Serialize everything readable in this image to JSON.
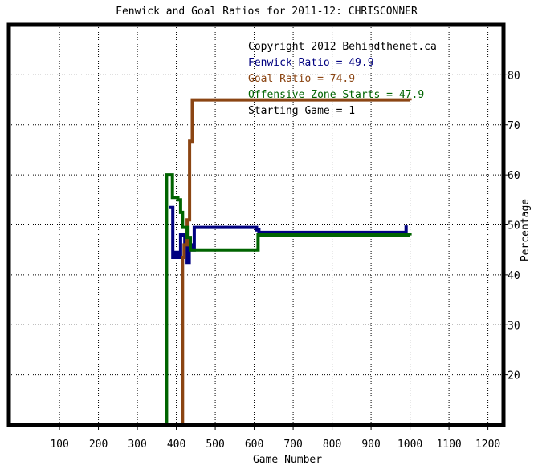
{
  "chart_data": {
    "type": "line",
    "title": "Fenwick and Goal Ratios for 2011-12: CHRISCONNER",
    "xlabel": "Game Number",
    "ylabel": "Percentage",
    "xlim": [
      -30,
      1240
    ],
    "ylim": [
      10,
      90
    ],
    "x_ticks": [
      100,
      200,
      300,
      400,
      500,
      600,
      700,
      800,
      900,
      1000,
      1100,
      1200
    ],
    "y_ticks": [
      20,
      30,
      40,
      50,
      60,
      70,
      80
    ],
    "grid": true,
    "legend_position": "top-right",
    "annotations": [
      {
        "text": "Copyright 2012 Behindthenet.ca",
        "color": "#000000"
      },
      {
        "text": "Fenwick Ratio = 49.9",
        "color": "#000080"
      },
      {
        "text": "Goal Ratio = 74.9",
        "color": "#8b4513"
      },
      {
        "text": "Offensive Zone Starts = 47.9",
        "color": "#006400"
      },
      {
        "text": "Starting Game = 1",
        "color": "#000000"
      }
    ],
    "series": [
      {
        "name": "Fenwick Ratio",
        "color": "#000080",
        "points": [
          [
            381,
            53.5
          ],
          [
            391,
            53.5
          ],
          [
            391,
            43.5
          ],
          [
            398,
            43.5
          ],
          [
            398,
            44.5
          ],
          [
            404,
            44.5
          ],
          [
            404,
            43.5
          ],
          [
            411,
            43.5
          ],
          [
            411,
            48
          ],
          [
            422,
            48
          ],
          [
            422,
            46
          ],
          [
            428,
            46
          ],
          [
            428,
            42.5
          ],
          [
            433,
            42.5
          ],
          [
            433,
            46
          ],
          [
            441,
            46
          ],
          [
            441,
            45
          ],
          [
            446,
            45
          ],
          [
            446,
            49.5
          ],
          [
            606,
            49.5
          ],
          [
            606,
            49
          ],
          [
            612,
            49
          ],
          [
            612,
            48.5
          ],
          [
            990,
            48.5
          ],
          [
            990,
            49.9
          ]
        ]
      },
      {
        "name": "Goal Ratio",
        "color": "#8b4513",
        "points": [
          [
            416,
            0
          ],
          [
            416,
            43.5
          ],
          [
            420,
            43.5
          ],
          [
            420,
            46
          ],
          [
            428,
            46
          ],
          [
            428,
            51
          ],
          [
            434,
            51
          ],
          [
            434,
            66.7
          ],
          [
            441,
            66.7
          ],
          [
            441,
            75
          ],
          [
            1000,
            75
          ],
          [
            1000,
            74.9
          ]
        ]
      },
      {
        "name": "Offensive Zone Starts",
        "color": "#006400",
        "points": [
          [
            375,
            0
          ],
          [
            375,
            60
          ],
          [
            390,
            60
          ],
          [
            390,
            55.5
          ],
          [
            404,
            55.5
          ],
          [
            404,
            55
          ],
          [
            411,
            55
          ],
          [
            411,
            52.5
          ],
          [
            416,
            52.5
          ],
          [
            416,
            49.5
          ],
          [
            428,
            49.5
          ],
          [
            428,
            47.5
          ],
          [
            436,
            47.5
          ],
          [
            436,
            45
          ],
          [
            610,
            45
          ],
          [
            610,
            48
          ],
          [
            1000,
            48
          ],
          [
            1000,
            47.9
          ]
        ]
      }
    ]
  }
}
